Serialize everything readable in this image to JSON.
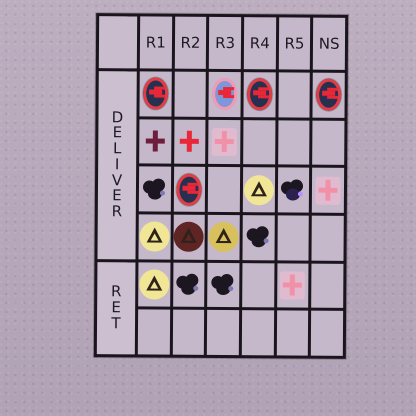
{
  "headers": [
    "R1",
    "R2",
    "R3",
    "R4",
    "R5",
    "NS"
  ],
  "side_labels": {
    "deliver": "D\nE\nL\nI\nV\nE\nR",
    "ret": "R\nE\nT"
  },
  "colors": {
    "background": "#b7a9bb",
    "grid_line": "#1a151d",
    "cell": "#c6b8cb",
    "red": "#e92738",
    "pink": "#f191a8",
    "yellow": "#f0e696",
    "dark": "#1b1620"
  },
  "rows": [
    [
      "red-cross-egg-icon",
      "",
      "pink-cross-egg-icon",
      "red-cross-egg-icon",
      "",
      "red-cross-egg-icon"
    ],
    [
      "dark-cross-icon",
      "red-cross-icon",
      "pink-cross-icon",
      "",
      "",
      ""
    ],
    [
      "black-blob-icon",
      "red-cross-egg-icon",
      "",
      "yellow-triangle-icon",
      "purple-blob-icon",
      "pink-cross-icon"
    ],
    [
      "yellow-triangle-icon",
      "dark-triangle-icon",
      "gold-triangle-icon",
      "black-blob-icon",
      "",
      ""
    ],
    [
      "yellow-triangle-icon",
      "black-blob-icon",
      "black-blob-icon",
      "",
      "pink-cross-icon",
      ""
    ],
    [
      "",
      "",
      "",
      "",
      "",
      ""
    ]
  ]
}
